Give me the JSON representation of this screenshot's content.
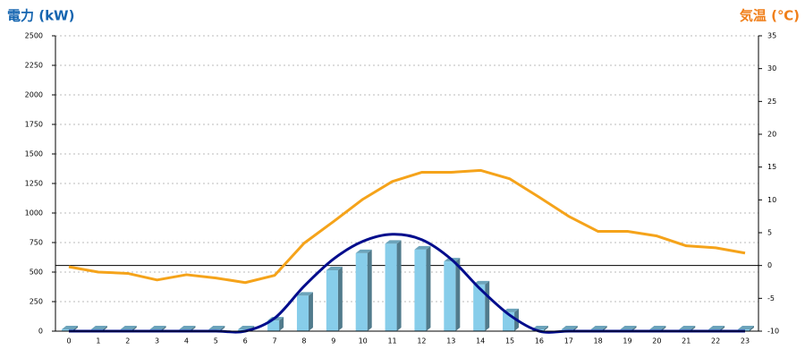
{
  "chart_data": {
    "type": "combo",
    "y_label": "電力 (kW)",
    "y2_label": "気温 (℃)",
    "categories": [
      "0",
      "1",
      "2",
      "3",
      "4",
      "5",
      "6",
      "7",
      "8",
      "9",
      "10",
      "11",
      "12",
      "13",
      "14",
      "15",
      "16",
      "17",
      "18",
      "19",
      "20",
      "21",
      "22",
      "23"
    ],
    "ylim": [
      0,
      2500
    ],
    "yticks": [
      0,
      250,
      500,
      750,
      1000,
      1250,
      1500,
      1750,
      2000,
      2250,
      2500
    ],
    "y2lim": [
      -10,
      35
    ],
    "y2ticks": [
      -10,
      -5,
      0,
      5,
      10,
      15,
      20,
      25,
      30,
      35
    ],
    "grid": true,
    "series": [
      {
        "type": "bar",
        "color": "#87cdea",
        "values": [
          0,
          0,
          0,
          0,
          0,
          0,
          0,
          90,
          300,
          515,
          660,
          740,
          690,
          590,
          395,
          160,
          0,
          0,
          0,
          0,
          0,
          0,
          0,
          0
        ]
      },
      {
        "type": "line",
        "smooth": true,
        "color": "#000c8c",
        "values": [
          0,
          0,
          0,
          0,
          0,
          0,
          0,
          110,
          380,
          610,
          760,
          820,
          775,
          610,
          355,
          135,
          0,
          0,
          0,
          0,
          0,
          0,
          0,
          0
        ]
      },
      {
        "type": "line",
        "axis": "y2",
        "color": "#f5a31a",
        "values": [
          -0.2,
          -1.0,
          -1.2,
          -2.2,
          -1.4,
          -1.9,
          -2.6,
          -1.5,
          3.4,
          6.7,
          10.1,
          12.8,
          14.2,
          14.2,
          14.5,
          13.2,
          10.4,
          7.5,
          5.2,
          5.2,
          4.5,
          3.0,
          2.7,
          1.9
        ]
      }
    ]
  }
}
